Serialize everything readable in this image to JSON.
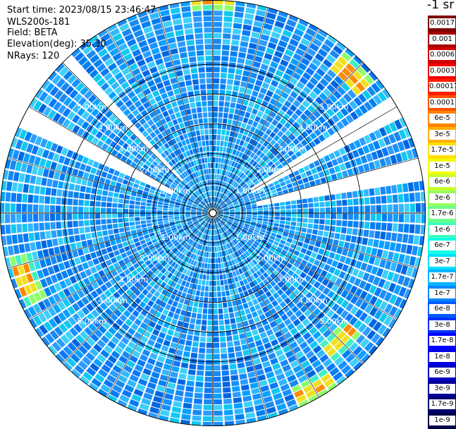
{
  "header": {
    "start_time": "Start time: 2023/08/15 23:46:47",
    "instrument": "WLS200s-181",
    "field": "Field: BETA",
    "elevation": "Elevation(deg): 35.30",
    "nrays": "NRays: 120"
  },
  "colorbar": {
    "unit_label": "-1 sr",
    "ticks": [
      "0.0017",
      "0.001",
      "0.0006",
      "0.0003",
      "0.00017",
      "0.0001",
      "6e-5",
      "3e-5",
      "1.7e-5",
      "1e-5",
      "6e-6",
      "3e-6",
      "1.7e-6",
      "1e-6",
      "6e-7",
      "3e-7",
      "1.7e-7",
      "1e-7",
      "6e-8",
      "3e-8",
      "1.7e-8",
      "1e-8",
      "6e-9",
      "3e-9",
      "1.7e-9",
      "1e-9"
    ],
    "colors": [
      "#7f0000",
      "#a40000",
      "#d10000",
      "#f50000",
      "#ff1e00",
      "#ff5200",
      "#ff8200",
      "#ffb000",
      "#ffdf00",
      "#f3ff00",
      "#c6ff2e",
      "#98ff5d",
      "#6bff8b",
      "#3dffba",
      "#10ffe8",
      "#00e0ff",
      "#00b4ff",
      "#0088ff",
      "#005cff",
      "#0030ff",
      "#0004ff",
      "#0000e8",
      "#0000c1",
      "#000099",
      "#000072",
      "#00004a"
    ]
  },
  "chart_data": {
    "type": "ppi",
    "rings_km": [
      1,
      2,
      3,
      4,
      5
    ],
    "ring_labels": [
      "1.00km",
      "2.00km",
      "3.00km",
      "4.00km",
      "5.00km"
    ],
    "max_range_km": 7.2,
    "nrays": 120,
    "spokes_every_deg": 15,
    "background_beta": "3e-7 to 3e-6 (mostly ~1e-6)",
    "hot_features": [
      {
        "az_deg": 0,
        "range_km": 7.1,
        "beta": "6e-5"
      },
      {
        "az_deg": 45,
        "range_km": 6.5,
        "beta": "3e-5"
      },
      {
        "az_deg": 135,
        "range_km": 6.0,
        "beta": "3e-5"
      },
      {
        "az_deg": 150,
        "range_km": 6.7,
        "beta": "3e-5"
      },
      {
        "az_deg": 250,
        "range_km": 6.6,
        "beta": "6e-5"
      }
    ],
    "gap_azimuths_deg": [
      60,
      78,
      297,
      316
    ]
  }
}
